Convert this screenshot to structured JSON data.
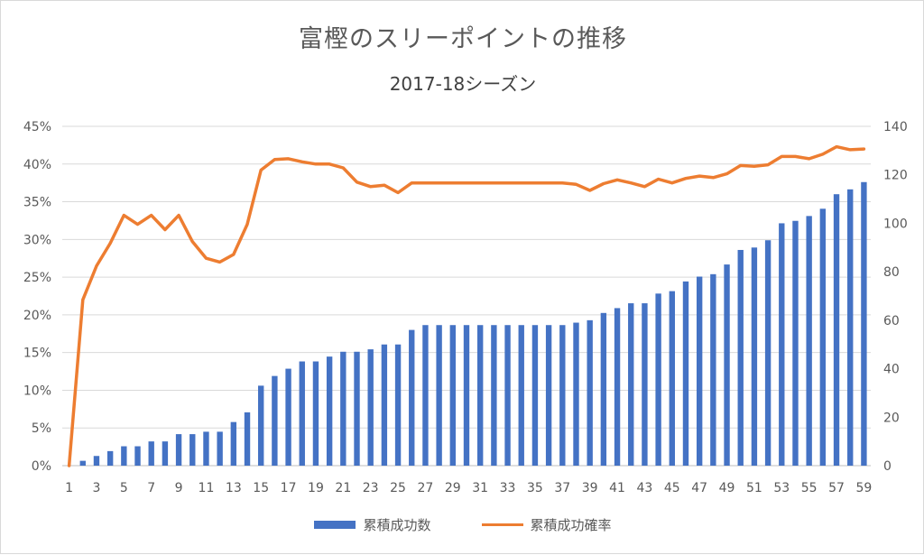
{
  "chart_data": {
    "type": "bar+line",
    "title": "富樫のスリーポイントの推移",
    "subtitle": "2017-18シーズン",
    "x": [
      1,
      2,
      3,
      4,
      5,
      6,
      7,
      8,
      9,
      10,
      11,
      12,
      13,
      14,
      15,
      16,
      17,
      18,
      19,
      20,
      21,
      22,
      23,
      24,
      25,
      26,
      27,
      28,
      29,
      30,
      31,
      32,
      33,
      34,
      35,
      36,
      37,
      38,
      39,
      40,
      41,
      42,
      43,
      44,
      45,
      46,
      47,
      48,
      49,
      50,
      51,
      52,
      53,
      54,
      55,
      56,
      57,
      58,
      59
    ],
    "x_tick_labels": [
      "1",
      "3",
      "5",
      "7",
      "9",
      "11",
      "13",
      "15",
      "17",
      "19",
      "21",
      "23",
      "25",
      "27",
      "29",
      "31",
      "33",
      "35",
      "37",
      "39",
      "41",
      "43",
      "45",
      "47",
      "49",
      "51",
      "53",
      "55",
      "57",
      "59"
    ],
    "y_left_ticks": [
      "0%",
      "5%",
      "10%",
      "15%",
      "20%",
      "25%",
      "30%",
      "35%",
      "40%",
      "45%"
    ],
    "y_right_ticks": [
      "0",
      "20",
      "40",
      "60",
      "80",
      "100",
      "120",
      "140"
    ],
    "y_left_lim": [
      0,
      0.45
    ],
    "y_right_lim": [
      0,
      140
    ],
    "series": [
      {
        "name": "累積成功数",
        "type": "bar",
        "axis": "right",
        "color": "#4472c4",
        "values": [
          0,
          2,
          4,
          6,
          8,
          8,
          10,
          10,
          13,
          13,
          14,
          14,
          18,
          22,
          33,
          37,
          40,
          43,
          43,
          45,
          47,
          47,
          48,
          50,
          50,
          56,
          58,
          58,
          58,
          58,
          58,
          58,
          58,
          58,
          58,
          58,
          58,
          59,
          60,
          63,
          65,
          67,
          67,
          71,
          72,
          76,
          78,
          79,
          83,
          89,
          90,
          93,
          100,
          101,
          103,
          106,
          112,
          114,
          117
        ]
      },
      {
        "name": "累積成功確率",
        "type": "line",
        "axis": "left",
        "color": "#ed7d31",
        "values": [
          0,
          0.22,
          0.265,
          0.295,
          0.332,
          0.32,
          0.332,
          0.313,
          0.332,
          0.297,
          0.275,
          0.27,
          0.28,
          0.32,
          0.392,
          0.406,
          0.407,
          0.403,
          0.4,
          0.4,
          0.395,
          0.376,
          0.37,
          0.372,
          0.362,
          0.375,
          0.375,
          0.375,
          0.375,
          0.375,
          0.375,
          0.375,
          0.375,
          0.375,
          0.375,
          0.375,
          0.375,
          0.373,
          0.365,
          0.374,
          0.379,
          0.375,
          0.37,
          0.38,
          0.375,
          0.381,
          0.384,
          0.382,
          0.387,
          0.398,
          0.397,
          0.399,
          0.41,
          0.41,
          0.407,
          0.413,
          0.423,
          0.419,
          0.42
        ]
      }
    ],
    "legend_position": "bottom",
    "grid": "horizontal"
  }
}
